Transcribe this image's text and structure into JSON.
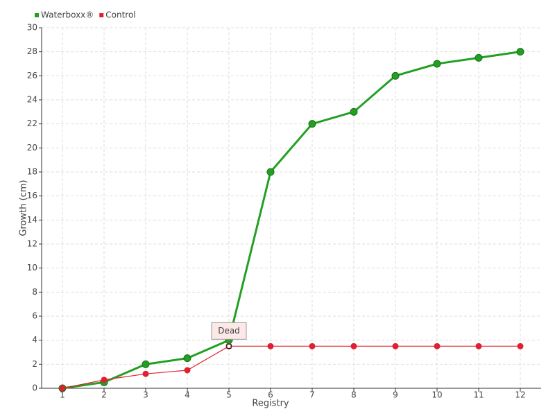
{
  "chart_data": {
    "type": "line",
    "x_label": "Registry",
    "y_label": "Growth (cm)",
    "categories": [
      "1",
      "2",
      "3",
      "4",
      "5",
      "6",
      "7",
      "8",
      "9",
      "10",
      "11",
      "12"
    ],
    "series": [
      {
        "name": "Waterboxx®",
        "color": "#22a022",
        "values": [
          0,
          0.5,
          2,
          2.5,
          4,
          18,
          22,
          23,
          26,
          27,
          27.5,
          28
        ]
      },
      {
        "name": "Control",
        "color": "#e02030",
        "values": [
          0,
          0.7,
          1.2,
          1.5,
          3.5,
          3.5,
          3.5,
          3.5,
          3.5,
          3.5,
          3.5,
          3.5
        ]
      }
    ],
    "annotation": "Dead",
    "ylim": [
      0,
      30
    ],
    "yticks": [
      0,
      2,
      4,
      6,
      8,
      10,
      12,
      14,
      16,
      18,
      20,
      22,
      24,
      26,
      28,
      30
    ],
    "grid": true,
    "legend": "top-left"
  }
}
